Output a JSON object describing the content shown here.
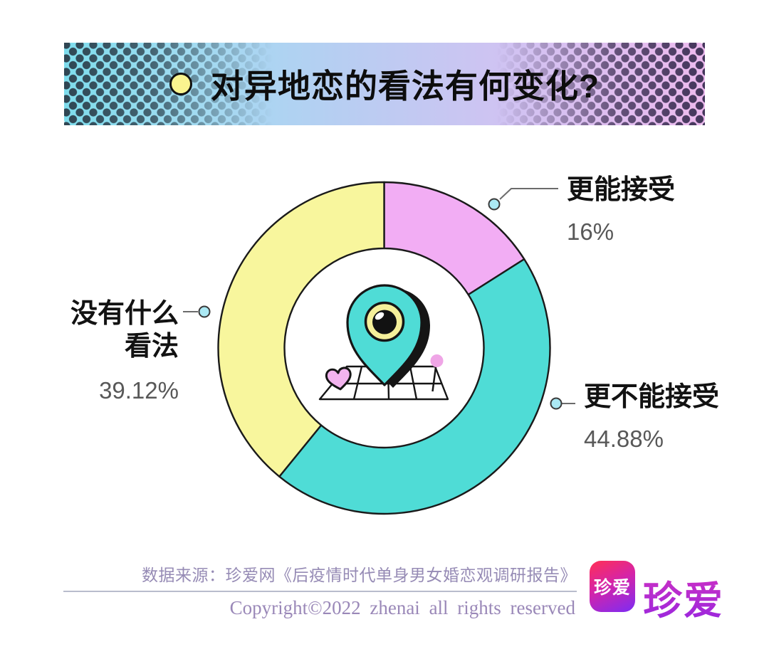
{
  "header": {
    "title": "对异地恋的看法有何变化?",
    "bullet_icon": "yellow-dot-icon"
  },
  "chart_data": {
    "type": "pie",
    "subtype": "donut",
    "title": "对异地恋的看法有何变化?",
    "start_angle_deg": 0,
    "direction": "clockwise",
    "inner_radius_ratio": 0.6,
    "segments": [
      {
        "label": "更能接受",
        "value_pct": 16,
        "display": "16%",
        "color": "#f2adf4"
      },
      {
        "label": "更不能接受",
        "value_pct": 44.88,
        "display": "44.88%",
        "color": "#4fdcd6"
      },
      {
        "label": "没有什么看法",
        "value_pct": 39.12,
        "display": "39.12%",
        "color": "#f8f69d"
      }
    ],
    "center_illustration": "teal-map-pin-with-eye-over-street-map-with-heart-and-pin",
    "legend_position": "callouts-outside"
  },
  "callouts": {
    "accept_more": {
      "label": "更能接受",
      "value": "16%"
    },
    "accept_less": {
      "label": "更不能接受",
      "value": "44.88%"
    },
    "no_opinion": {
      "line1": "没有什么",
      "line2": "看法",
      "value": "39.12%"
    }
  },
  "footer": {
    "source": "数据来源：珍爱网《后疫情时代单身男女婚恋观调研报告》",
    "copyright": "Copyright©2022 zhenai all rights reserved",
    "logo_icon_text": "珍爱",
    "brand_name": "珍爱"
  },
  "colors": {
    "banner_gradient_left": "#7edcec",
    "banner_gradient_right": "#edbaee",
    "halftone_dots_left": "#2f4552",
    "halftone_dots_right": "#43355a",
    "segment_pink": "#f2adf4",
    "segment_teal": "#4fdcd6",
    "segment_yellow": "#f8f69d",
    "outline_black": "#1a1a1a",
    "value_text_gray": "#585858",
    "leader_dot_cyan": "#abe9f4",
    "footer_text_purple": "#968bb5",
    "divider": "#b9bccd",
    "logo_gradient_top": "#fb2e5e",
    "logo_gradient_bottom": "#7c2cf4",
    "brand_magenta": "#c02bc9",
    "heart_pink": "#f2b3ee",
    "eye_ring_yellow": "#f5f09a"
  }
}
